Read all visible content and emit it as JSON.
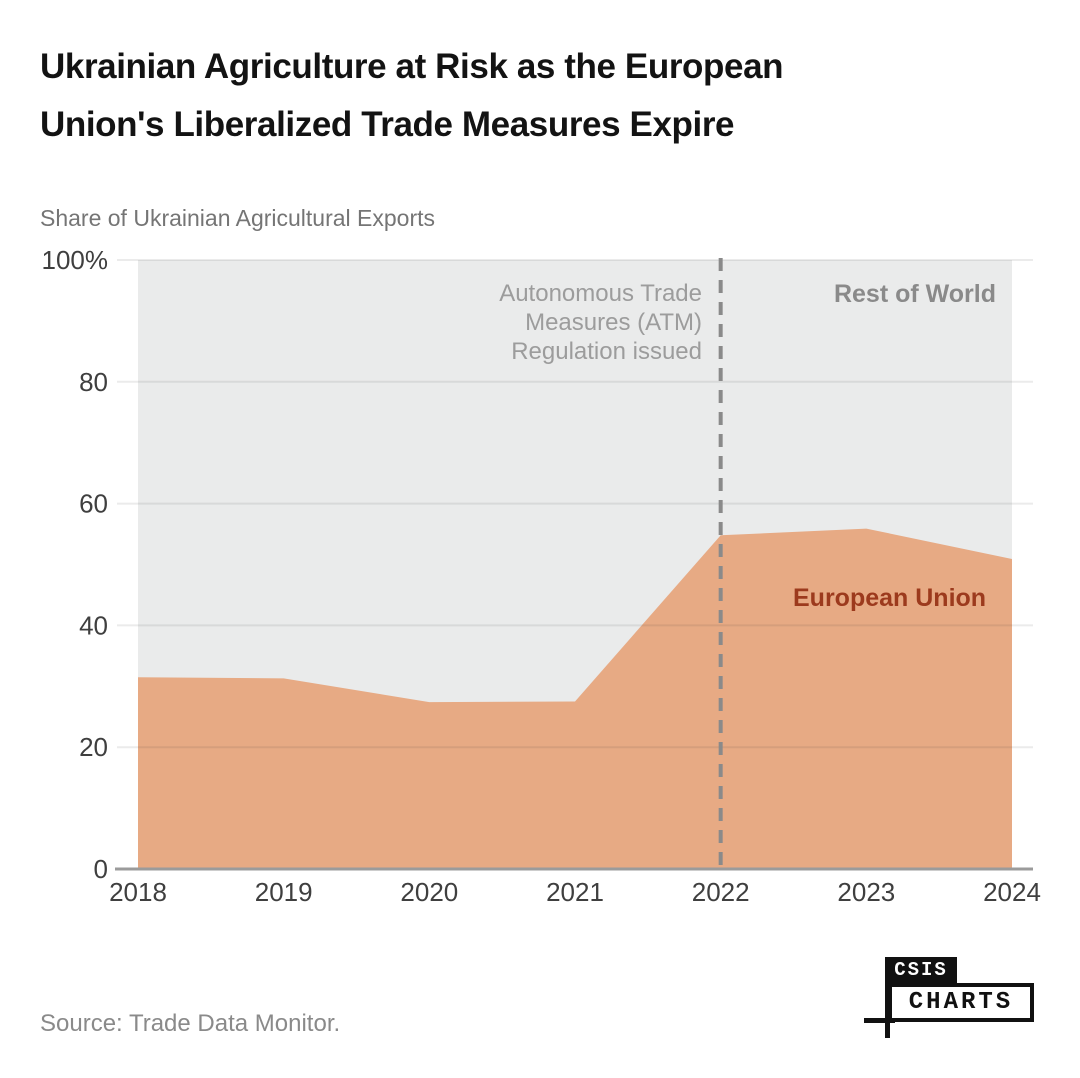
{
  "title": {
    "line1": "Ukrainian Agriculture at Risk as the European",
    "line2": "Union's Liberalized Trade Measures Expire"
  },
  "subtitle": "Share of Ukrainian Agricultural Exports",
  "annotation": {
    "line1": "Autonomous Trade",
    "line2": "Measures (ATM)",
    "line3": "Regulation issued"
  },
  "labels": {
    "rest_of_world": "Rest of World",
    "european_union": "European Union"
  },
  "source": "Source: Trade Data Monitor.",
  "logo": {
    "top": "CSIS",
    "bottom": "CHARTS"
  },
  "colors": {
    "eu_area": "#E7AA84",
    "rest_of_world_area": "#EAEBEB",
    "eu_label": "#9C3A1D",
    "rest_of_world_label": "#8A8A8A",
    "annotation_text": "#9C9C9C",
    "axis_line": "#9B9B9B",
    "dashed_line": "#8A8A8A",
    "tick_text": "#3F3F3F"
  },
  "chart_data": {
    "type": "area",
    "stacked": true,
    "title": "Share of Ukrainian Agricultural Exports",
    "x": [
      2018,
      2019,
      2020,
      2021,
      2022,
      2023,
      2024
    ],
    "series": [
      {
        "name": "European Union",
        "values": [
          31.5,
          31.3,
          27.4,
          27.5,
          54.8,
          55.9,
          50.9
        ],
        "color": "#E7AA84"
      },
      {
        "name": "Rest of World",
        "values": [
          68.5,
          68.7,
          72.6,
          72.5,
          45.2,
          44.1,
          49.1
        ],
        "color": "#EAEBEB"
      }
    ],
    "xlabel": "",
    "ylabel": "Share of Ukrainian Agricultural Exports",
    "ylim": [
      0,
      100
    ],
    "yticks": [
      0,
      20,
      40,
      60,
      80,
      100
    ],
    "ytick_labels": [
      "0",
      "20",
      "40",
      "60",
      "80",
      "100%"
    ],
    "xticks": [
      2018,
      2019,
      2020,
      2021,
      2022,
      2023,
      2024
    ],
    "grid": true,
    "legend_position": "inside",
    "event_line": {
      "x": 2022,
      "label": "Autonomous Trade Measures (ATM) Regulation issued"
    }
  }
}
